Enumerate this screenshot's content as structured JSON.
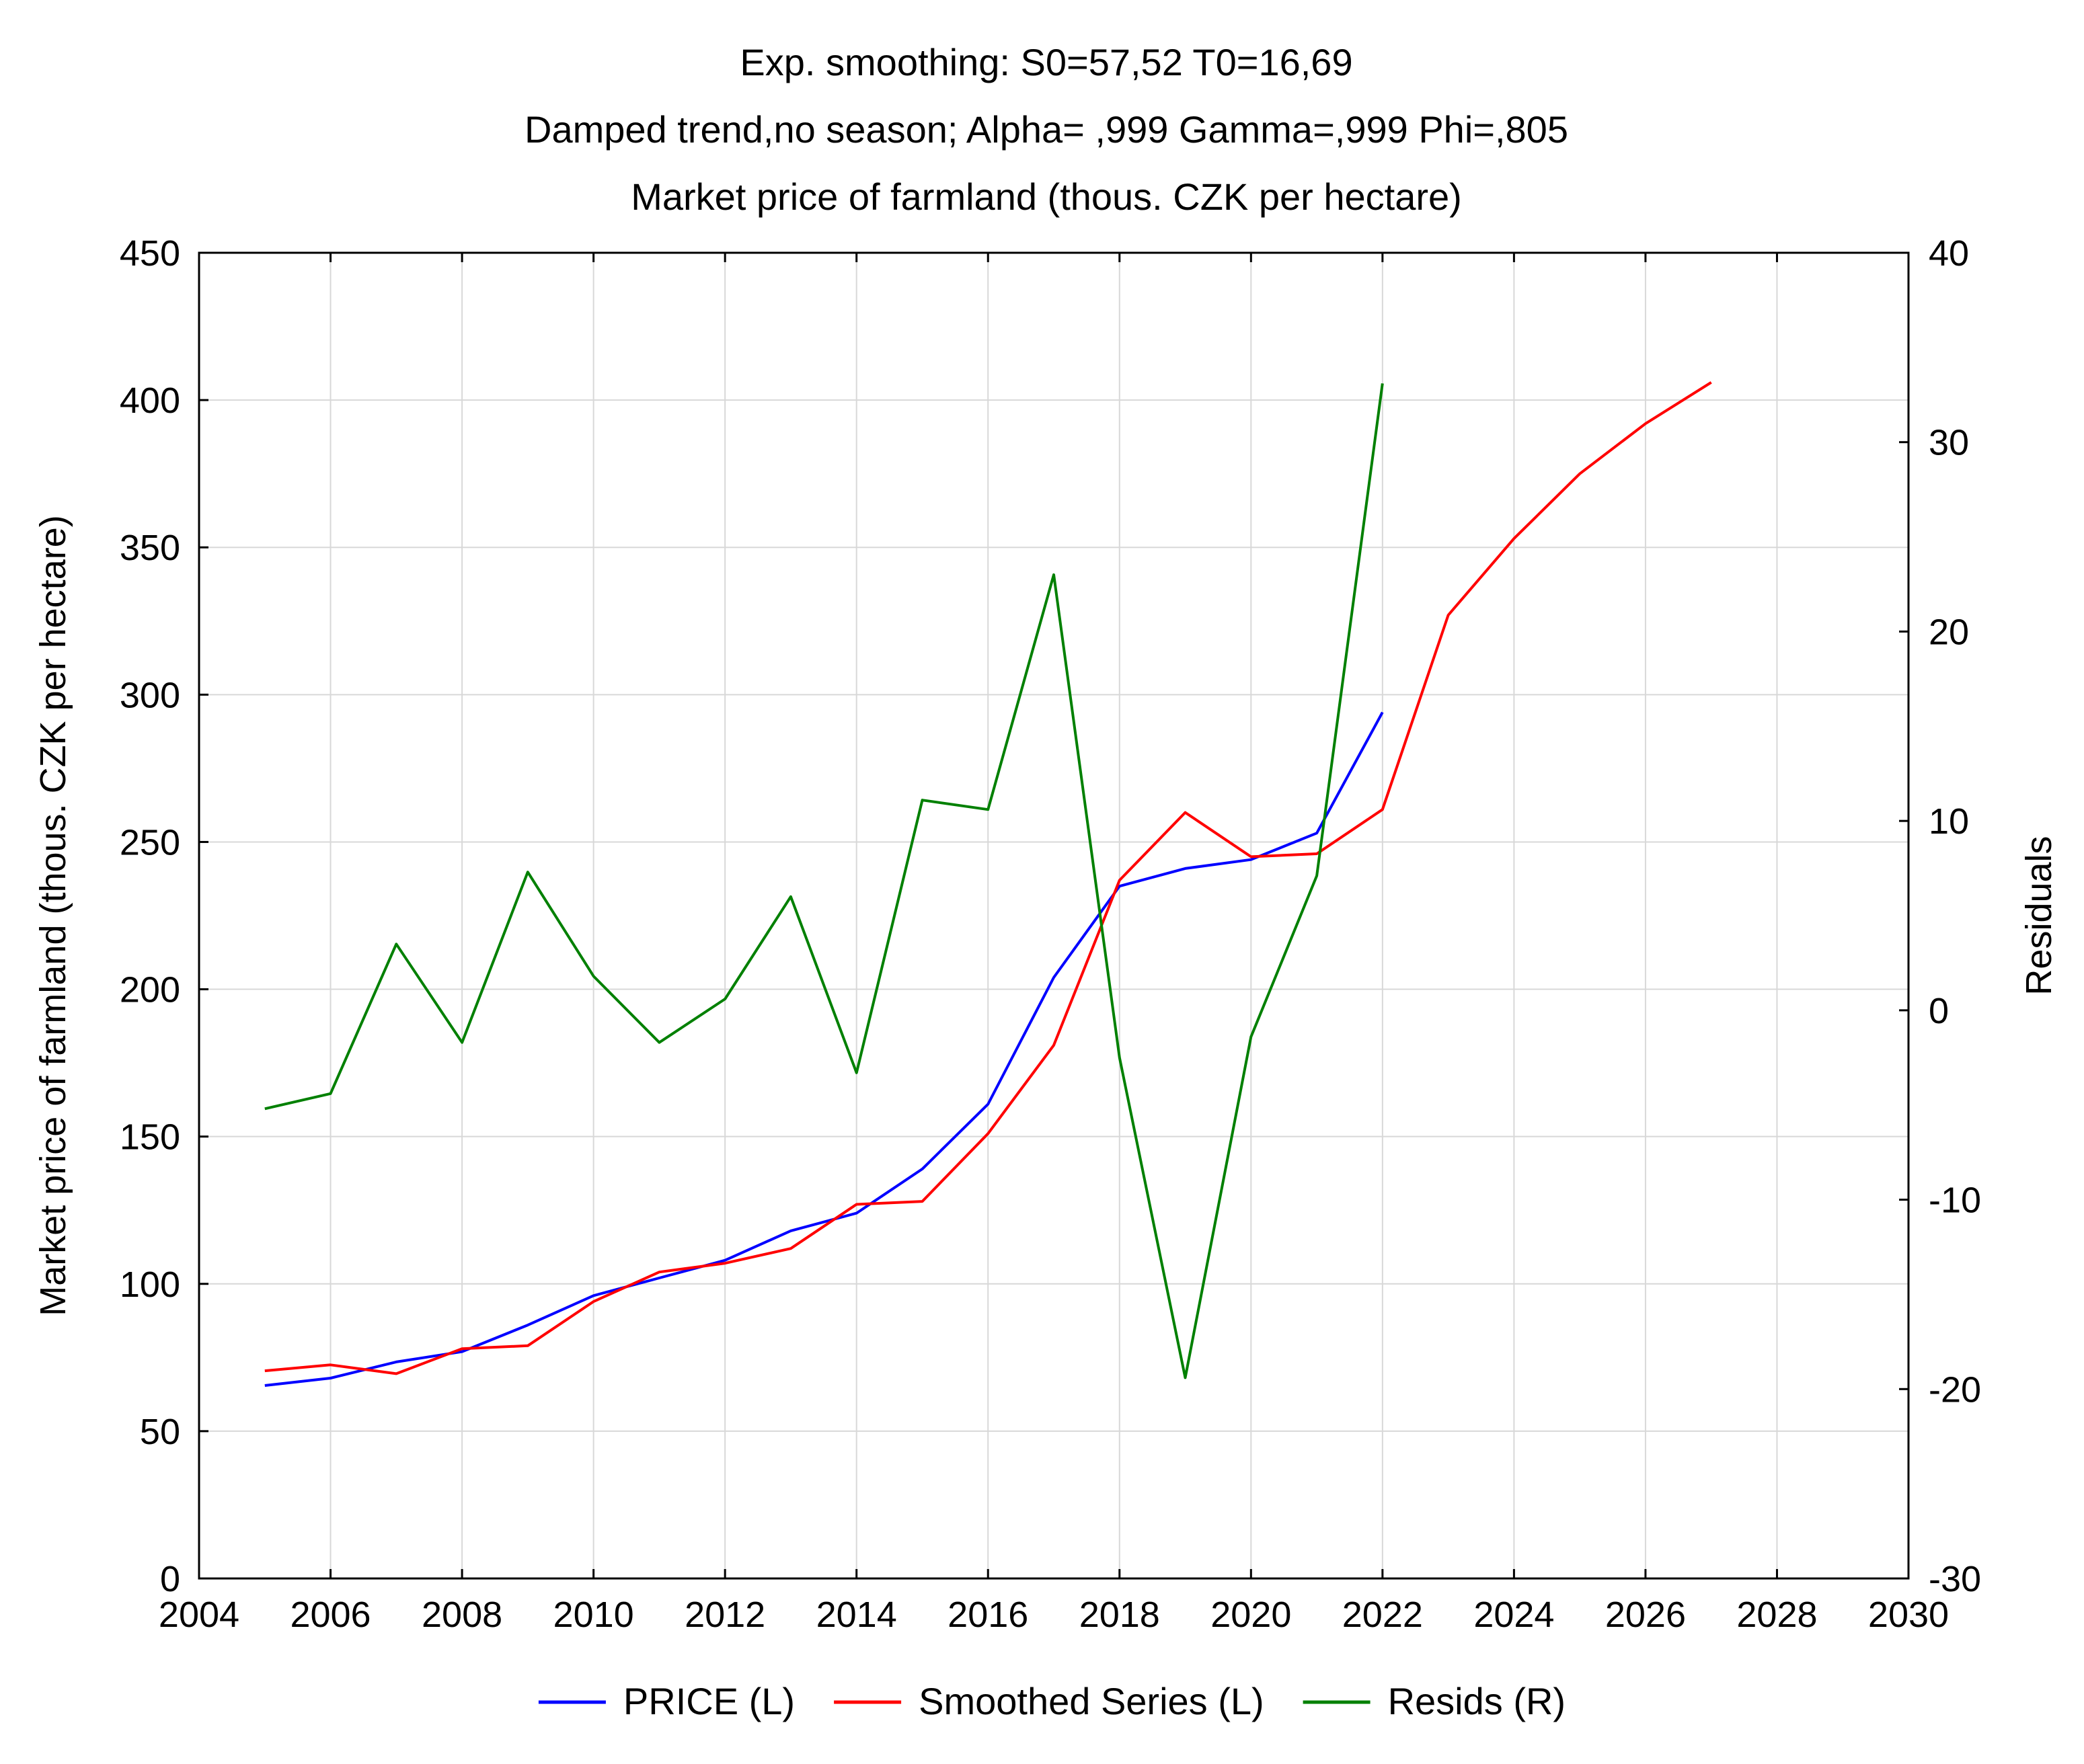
{
  "chart_data": {
    "type": "line",
    "title_lines": [
      "Exp. smoothing:  S0=57,52 T0=16,69",
      "Damped trend,no season; Alpha=  ,999 Gamma=,999 Phi=,805",
      "Market price of farmland (thous. CZK per hectare)"
    ],
    "ylabel_left": "Market price of farmland (thous. CZK per hectare)",
    "ylabel_right": "Residuals",
    "xlabel": "",
    "xlim": [
      2004,
      2030
    ],
    "x_ticks": [
      2004,
      2006,
      2008,
      2010,
      2012,
      2014,
      2016,
      2018,
      2020,
      2022,
      2024,
      2026,
      2028,
      2030
    ],
    "ylim_left": [
      0,
      450
    ],
    "y_ticks_left": [
      0,
      50,
      100,
      150,
      200,
      250,
      300,
      350,
      400,
      450
    ],
    "ylim_right": [
      -30,
      40
    ],
    "y_ticks_right": [
      -30,
      -20,
      -10,
      0,
      10,
      20,
      30,
      40
    ],
    "grid": true,
    "legend_position": "bottom",
    "series": [
      {
        "name": "PRICE (L)",
        "axis": "left",
        "color": "#0000ff",
        "x": [
          2005,
          2006,
          2007,
          2008,
          2009,
          2010,
          2011,
          2012,
          2013,
          2014,
          2015,
          2016,
          2017,
          2018,
          2019,
          2020,
          2021,
          2022
        ],
        "values": [
          65.5,
          68,
          73.5,
          77,
          86,
          96,
          102,
          108,
          118,
          124,
          139,
          161,
          204,
          235,
          241,
          244,
          253,
          294
        ]
      },
      {
        "name": "Smoothed Series (L)",
        "axis": "left",
        "color": "#ff0000",
        "x": [
          2005,
          2006,
          2007,
          2008,
          2009,
          2010,
          2011,
          2012,
          2013,
          2014,
          2015,
          2016,
          2017,
          2018,
          2019,
          2020,
          2021,
          2022,
          2023,
          2024,
          2025,
          2026,
          2027
        ],
        "values": [
          70.5,
          72.5,
          69.5,
          78,
          79,
          94,
          104,
          107,
          112,
          127,
          128,
          151,
          181,
          237,
          260,
          245,
          246,
          261,
          327,
          353,
          375,
          392,
          406
        ]
      },
      {
        "name": "Resids (R)",
        "axis": "right",
        "color": "#008000",
        "x": [
          2005,
          2006,
          2007,
          2008,
          2009,
          2010,
          2011,
          2012,
          2013,
          2014,
          2015,
          2016,
          2017,
          2018,
          2019,
          2020,
          2021,
          2022
        ],
        "values": [
          -5.2,
          -4.4,
          3.5,
          -1.7,
          7.3,
          1.8,
          -1.7,
          0.6,
          6,
          -3.3,
          11.1,
          10.6,
          23,
          -2.5,
          -19.4,
          -1.4,
          7.1,
          33.1
        ]
      }
    ]
  }
}
